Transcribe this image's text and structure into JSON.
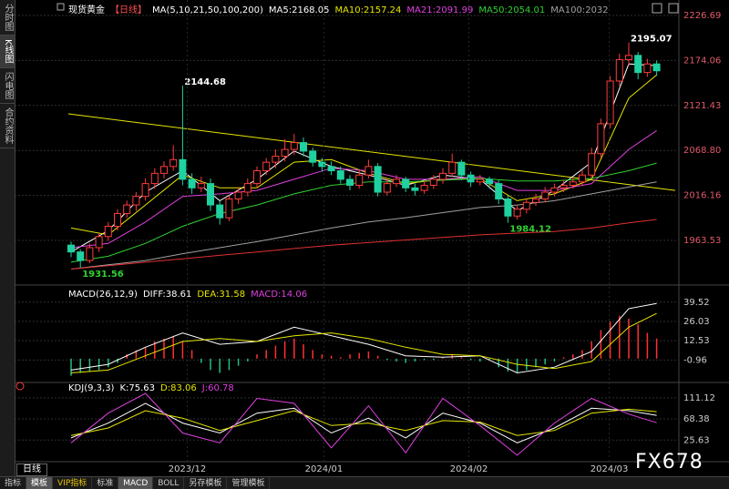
{
  "ui": {
    "sidebar": [
      "分时图",
      "K线图",
      "闪电图",
      "合约资料"
    ],
    "period_button": "日线",
    "toolbar": [
      "指标",
      "模板",
      "VIP指标",
      "标准",
      "MACD",
      "BOLL",
      "另存模板",
      "管理模板"
    ],
    "watermark": "FX678"
  },
  "chart_data": [
    {
      "type": "candlestick",
      "title": "现货黄金",
      "period": "【日线】",
      "indicator": "MA(5,10,21,50,100,200)",
      "up_color": "#ff3b3b",
      "down_color": "#1fd1a0",
      "candles": {
        "open": [
          1958,
          1950,
          1940,
          1955,
          1968,
          1980,
          1995,
          2005,
          2015,
          2030,
          2042,
          2050,
          2058,
          2035,
          2025,
          2030,
          2005,
          1990,
          2012,
          2020,
          2030,
          2045,
          2055,
          2062,
          2070,
          2078,
          2068,
          2055,
          2050,
          2045,
          2035,
          2028,
          2040,
          2050,
          2020,
          2030,
          2035,
          2025,
          2022,
          2028,
          2035,
          2042,
          2055,
          2040,
          2032,
          2035,
          2030,
          2012,
          1992,
          2000,
          2008,
          2012,
          2020,
          2025,
          2028,
          2032,
          2040,
          2065,
          2100,
          2150,
          2175,
          2180,
          2160,
          2170
        ],
        "high": [
          1962,
          1953,
          1960,
          1972,
          1985,
          2000,
          2010,
          2020,
          2036,
          2048,
          2056,
          2075,
          2144.68,
          2042,
          2038,
          2036,
          2010,
          2016,
          2026,
          2036,
          2050,
          2060,
          2070,
          2082,
          2088,
          2084,
          2072,
          2060,
          2056,
          2050,
          2040,
          2046,
          2058,
          2054,
          2036,
          2040,
          2038,
          2030,
          2034,
          2040,
          2048,
          2065,
          2058,
          2044,
          2040,
          2038,
          2034,
          2016,
          2005,
          2012,
          2018,
          2026,
          2030,
          2034,
          2036,
          2046,
          2072,
          2106,
          2156,
          2182,
          2195.07,
          2184,
          2176,
          2174
        ],
        "low": [
          1944,
          1931.56,
          1937,
          1950,
          1963,
          1975,
          1990,
          1998,
          2010,
          2024,
          2036,
          2045,
          2028,
          2018,
          2020,
          1998,
          1982,
          1986,
          2006,
          2015,
          2025,
          2040,
          2048,
          2056,
          2064,
          2062,
          2050,
          2044,
          2040,
          2030,
          2022,
          2024,
          2036,
          2015,
          2016,
          2026,
          2020,
          2016,
          2018,
          2024,
          2030,
          2038,
          2034,
          2026,
          2028,
          2024,
          2006,
          1984.12,
          1988,
          1995,
          2004,
          2008,
          2015,
          2020,
          2024,
          2028,
          2036,
          2060,
          2095,
          2144,
          2168,
          2152,
          2155,
          2156
        ],
        "close": [
          1950,
          1940,
          1955,
          1968,
          1980,
          1995,
          2005,
          2015,
          2030,
          2042,
          2050,
          2058,
          2035,
          2025,
          2030,
          2005,
          1990,
          2012,
          2020,
          2030,
          2045,
          2055,
          2062,
          2070,
          2078,
          2068,
          2055,
          2050,
          2045,
          2035,
          2028,
          2040,
          2050,
          2020,
          2030,
          2035,
          2025,
          2022,
          2028,
          2035,
          2042,
          2055,
          2040,
          2032,
          2035,
          2030,
          2012,
          1992,
          2000,
          2008,
          2012,
          2020,
          2025,
          2028,
          2032,
          2040,
          2065,
          2100,
          2150,
          2175,
          2180,
          2160,
          2170,
          2162
        ]
      },
      "series": [
        {
          "name": "MA5",
          "color": "#ffffff",
          "x": [
            0,
            4,
            8,
            12,
            16,
            20,
            24,
            28,
            32,
            36,
            40,
            44,
            48,
            52,
            56,
            60,
            63
          ],
          "values": [
            1950,
            1975,
            2020,
            2045,
            2010,
            2035,
            2068,
            2050,
            2040,
            2028,
            2040,
            2035,
            1998,
            2022,
            2055,
            2170,
            2168.05
          ]
        },
        {
          "name": "MA10",
          "color": "#e6e600",
          "x": [
            0,
            4,
            8,
            12,
            16,
            20,
            24,
            28,
            32,
            36,
            40,
            44,
            48,
            52,
            56,
            60,
            63
          ],
          "values": [
            1978,
            1970,
            2005,
            2040,
            2025,
            2025,
            2055,
            2058,
            2042,
            2030,
            2035,
            2036,
            2010,
            2018,
            2035,
            2130,
            2157.24
          ]
        },
        {
          "name": "MA21",
          "color": "#e040e0",
          "x": [
            0,
            4,
            8,
            12,
            16,
            20,
            24,
            28,
            32,
            36,
            40,
            44,
            48,
            52,
            56,
            60,
            63
          ],
          "values": [
            1955,
            1960,
            1985,
            2015,
            2018,
            2022,
            2035,
            2048,
            2045,
            2035,
            2035,
            2038,
            2022,
            2022,
            2030,
            2070,
            2091.99
          ]
        },
        {
          "name": "MA50",
          "color": "#30d030",
          "x": [
            0,
            4,
            8,
            12,
            16,
            20,
            24,
            28,
            32,
            36,
            40,
            44,
            48,
            52,
            56,
            60,
            63
          ],
          "values": [
            1938,
            1945,
            1960,
            1980,
            1995,
            2005,
            2018,
            2028,
            2032,
            2032,
            2034,
            2036,
            2033,
            2033,
            2036,
            2045,
            2054.01
          ]
        },
        {
          "name": "MA100",
          "color": "#a0a0a0",
          "x": [
            0,
            4,
            8,
            12,
            16,
            20,
            24,
            28,
            32,
            36,
            40,
            44,
            48,
            52,
            56,
            60,
            63
          ],
          "values": [
            1930,
            1935,
            1940,
            1948,
            1955,
            1962,
            1970,
            1978,
            1985,
            1990,
            1996,
            2002,
            2005,
            2010,
            2018,
            2026,
            2032
          ]
        },
        {
          "color": "#e03030",
          "x": [
            0,
            4,
            8,
            12,
            16,
            20,
            24,
            28,
            32,
            36,
            40,
            44,
            48,
            52,
            56,
            60,
            63
          ],
          "values": [
            1930,
            1934,
            1938,
            1942,
            1946,
            1950,
            1954,
            1958,
            1961,
            1964,
            1967,
            1970,
            1972,
            1974,
            1978,
            1984,
            1988
          ]
        }
      ],
      "trendline": {
        "color": "#e6e600",
        "x": [
          -0.3,
          65
        ],
        "values": [
          2111.6,
          2022
        ]
      },
      "ylim": [
        1914.5,
        2239.5
      ],
      "yticks": [
        2226.69,
        2174.06,
        2121.43,
        {
          "value": 2068.8,
          "label": "2068.80"
        },
        2016.16,
        1963.53
      ],
      "xticks": [
        {
          "value": 12.5,
          "label": "2023/12"
        },
        {
          "value": 27.2,
          "label": "2024/01"
        },
        {
          "value": 42.8,
          "label": "2024/02"
        },
        {
          "value": 57.9,
          "label": "2024/03"
        }
      ]
    },
    {
      "type": "macd",
      "indicator": "MACD(26,12,9)",
      "series": [
        {
          "name": "DIFF",
          "color": "#ffffff",
          "x": [
            0,
            4,
            8,
            12,
            16,
            20,
            24,
            28,
            32,
            36,
            40,
            44,
            48,
            52,
            56,
            60,
            63
          ],
          "values": [
            -8,
            -4,
            8,
            18,
            10,
            12,
            22,
            16,
            10,
            2,
            1,
            2,
            -10,
            -6,
            5,
            35,
            38.61
          ]
        },
        {
          "name": "DEA",
          "color": "#e6e600",
          "x": [
            0,
            4,
            8,
            12,
            16,
            20,
            24,
            28,
            32,
            36,
            40,
            44,
            48,
            52,
            56,
            60,
            63
          ],
          "values": [
            -10,
            -8,
            2,
            12,
            14,
            12,
            16,
            18,
            14,
            8,
            3,
            2,
            -4,
            -7,
            -2,
            22,
            31.58
          ]
        }
      ],
      "histogram": {
        "name": "MACD",
        "color": "#e040e0",
        "pos_color": "#ff3030",
        "neg_color": "#20c080",
        "values": [
          -12,
          -10,
          -9,
          -8,
          -6,
          -3,
          3,
          6,
          8,
          12,
          14,
          16,
          12,
          6,
          -3,
          -8,
          -10,
          -8,
          -5,
          -2,
          3,
          6,
          9,
          12,
          14,
          10,
          6,
          3,
          2,
          1,
          3,
          4,
          5,
          2,
          -1,
          -2,
          -3,
          -2,
          -1,
          -1,
          1,
          3,
          1,
          -1,
          -2,
          -1,
          -6,
          -9,
          -10,
          -8,
          -6,
          -4,
          -2,
          1,
          3,
          6,
          12,
          20,
          26,
          30,
          28,
          24,
          18,
          14.06
        ]
      },
      "ylim": [
        -15.4,
        48.3
      ],
      "yticks": [
        39.52,
        26.03,
        12.53,
        -0.96
      ]
    },
    {
      "type": "line",
      "indicator": "KDJ(9,3,3)",
      "series": [
        {
          "name": "K",
          "color": "#ffffff",
          "x": [
            0,
            4,
            8,
            12,
            16,
            20,
            24,
            28,
            32,
            36,
            40,
            44,
            48,
            52,
            56,
            60,
            63
          ],
          "values": [
            30,
            60,
            100,
            60,
            40,
            80,
            90,
            40,
            70,
            30,
            80,
            60,
            20,
            50,
            90,
            85,
            75.63
          ]
        },
        {
          "name": "D",
          "color": "#e6e600",
          "x": [
            0,
            4,
            8,
            12,
            16,
            20,
            24,
            28,
            32,
            36,
            40,
            44,
            48,
            52,
            56,
            60,
            63
          ],
          "values": [
            35,
            50,
            85,
            70,
            45,
            65,
            85,
            55,
            60,
            45,
            65,
            62,
            35,
            45,
            80,
            88,
            83.06
          ]
        },
        {
          "name": "J",
          "color": "#e040e0",
          "x": [
            0,
            4,
            8,
            12,
            16,
            20,
            24,
            28,
            32,
            36,
            40,
            44,
            48,
            52,
            56,
            60,
            63
          ],
          "values": [
            20,
            80,
            120,
            40,
            20,
            110,
            100,
            10,
            95,
            0,
            110,
            55,
            -5,
            60,
            110,
            78,
            60.78
          ]
        }
      ],
      "ylim": [
        -14.4,
        131.1
      ],
      "yticks": [
        111.12,
        68.38,
        25.63
      ]
    }
  ]
}
